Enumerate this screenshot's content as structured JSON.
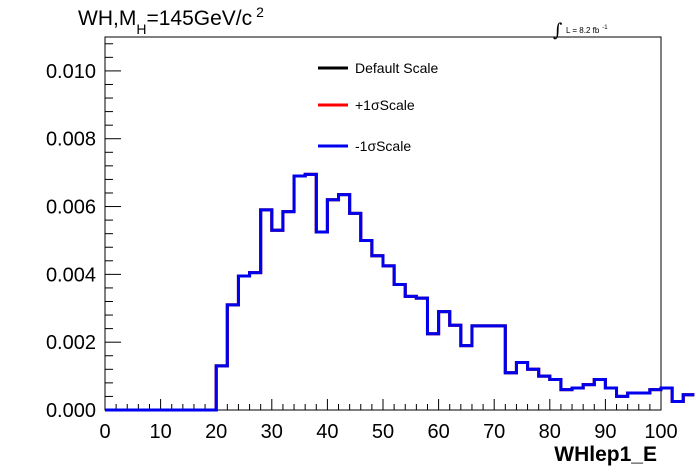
{
  "chart_data": {
    "type": "line",
    "title": {
      "prefix": "WH,M",
      "subscript": "H",
      "value": "=145GeV/c",
      "superscript": "2"
    },
    "luminosity": {
      "symbol": "∫",
      "text": "L = 8.2 fb",
      "exponent": "-1"
    },
    "xlabel": "WHlep1_E",
    "ylabel": "",
    "xlim": [
      0,
      100
    ],
    "ylim": [
      0,
      0.011
    ],
    "x_ticks": [
      "0",
      "10",
      "20",
      "30",
      "40",
      "50",
      "60",
      "70",
      "80",
      "90",
      "100"
    ],
    "y_ticks": [
      "0.000",
      "0.002",
      "0.004",
      "0.006",
      "0.008",
      "0.010"
    ],
    "bin_width": 2,
    "bin_edges_start": 0,
    "legend_position": "top-center",
    "series": [
      {
        "name": "Default Scale",
        "color": "#000000",
        "values": [
          0,
          0,
          0,
          0,
          0,
          0,
          0,
          0,
          0,
          0,
          0.0013,
          0.0031,
          0.00395,
          0.00405,
          0.0059,
          0.0053,
          0.00585,
          0.0069,
          0.00695,
          0.00525,
          0.0062,
          0.00635,
          0.0058,
          0.005,
          0.00455,
          0.00425,
          0.0037,
          0.00335,
          0.0033,
          0.00225,
          0.0029,
          0.0025,
          0.0019,
          0.00248,
          0.00248,
          0.00248,
          0.0011,
          0.0014,
          0.0012,
          0.001,
          0.0009,
          0.0006,
          0.00065,
          0.00075,
          0.0009,
          0.00065,
          0.0004,
          0.0005,
          0.0005,
          0.0006,
          0.00065,
          0.00025,
          0.00045
        ]
      },
      {
        "name": "+1σScale",
        "color": "#ff0000",
        "values": [
          0,
          0,
          0,
          0,
          0,
          0,
          0,
          0,
          0,
          0,
          0.0013,
          0.0031,
          0.00395,
          0.00405,
          0.0059,
          0.0053,
          0.00585,
          0.0069,
          0.00695,
          0.00525,
          0.0062,
          0.00635,
          0.0058,
          0.005,
          0.00455,
          0.00425,
          0.0037,
          0.00335,
          0.0033,
          0.00225,
          0.0029,
          0.0025,
          0.0019,
          0.00248,
          0.00248,
          0.00248,
          0.0011,
          0.0014,
          0.0012,
          0.001,
          0.0009,
          0.0006,
          0.00065,
          0.00075,
          0.0009,
          0.00065,
          0.0004,
          0.0005,
          0.0005,
          0.0006,
          0.00065,
          0.00025,
          0.00045
        ]
      },
      {
        "name": "-1σScale",
        "color": "#0000ee",
        "values": [
          0,
          0,
          0,
          0,
          0,
          0,
          0,
          0,
          0,
          0,
          0.0013,
          0.0031,
          0.00395,
          0.00405,
          0.0059,
          0.0053,
          0.00585,
          0.0069,
          0.00695,
          0.00525,
          0.0062,
          0.00635,
          0.0058,
          0.005,
          0.00455,
          0.00425,
          0.0037,
          0.00335,
          0.0033,
          0.00225,
          0.0029,
          0.0025,
          0.0019,
          0.00248,
          0.00248,
          0.00248,
          0.0011,
          0.0014,
          0.0012,
          0.001,
          0.0009,
          0.0006,
          0.00065,
          0.00075,
          0.0009,
          0.00065,
          0.0004,
          0.0005,
          0.0005,
          0.0006,
          0.00065,
          0.00025,
          0.00045
        ]
      }
    ]
  }
}
